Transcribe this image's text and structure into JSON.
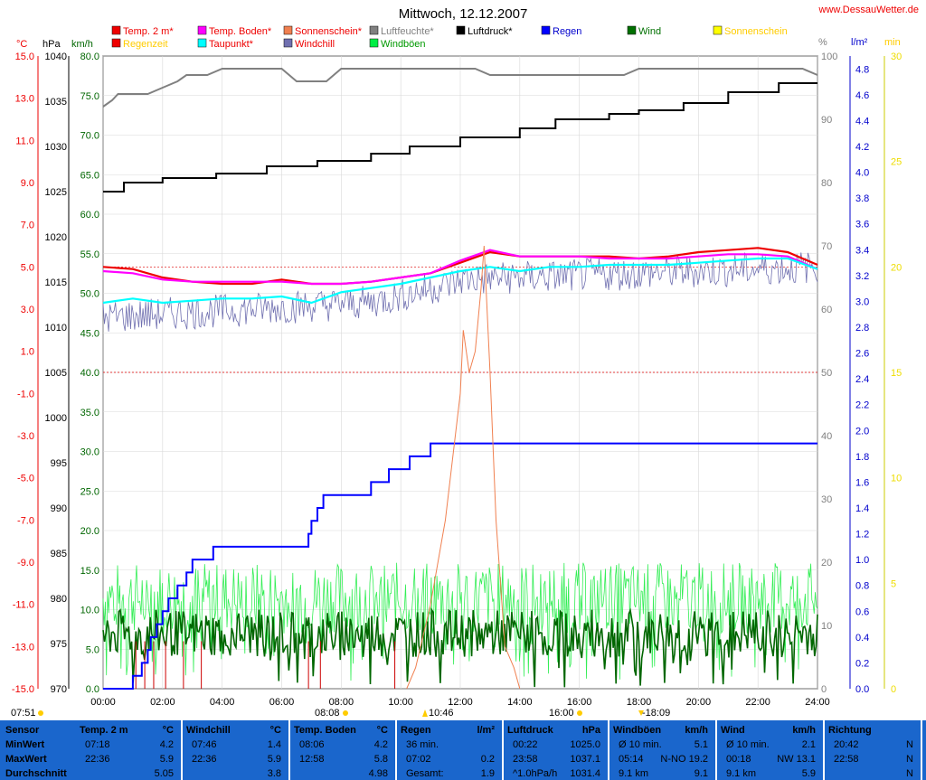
{
  "header": {
    "title": "Mittwoch, 12.12.2007",
    "website": "www.DessauWetter.de"
  },
  "axes": {
    "temp_unit": "°C",
    "temp_ticks": [
      "15.0",
      "13.0",
      "11.0",
      "9.0",
      "7.0",
      "5.0",
      "3.0",
      "1.0",
      "-1.0",
      "-3.0",
      "-5.0",
      "-7.0",
      "-9.0",
      "-11.0",
      "-13.0",
      "-15.0"
    ],
    "press_unit": "hPa",
    "press_ticks": [
      "1040",
      "1035",
      "1030",
      "1025",
      "1020",
      "1015",
      "1010",
      "1005",
      "1000",
      "995",
      "990",
      "985",
      "980",
      "975",
      "970"
    ],
    "wind_unit": "km/h",
    "wind_ticks": [
      "80.0",
      "75.0",
      "70.0",
      "65.0",
      "60.0",
      "55.0",
      "50.0",
      "45.0",
      "40.0",
      "35.0",
      "30.0",
      "25.0",
      "20.0",
      "15.0",
      "10.0",
      "5.0",
      "0.0"
    ],
    "hum_unit": "%",
    "hum_ticks": [
      "100",
      "90",
      "80",
      "70",
      "60",
      "50",
      "40",
      "30",
      "20",
      "10",
      "0"
    ],
    "rain_unit": "l/m²",
    "rain_ticks": [
      "4.8",
      "4.6",
      "4.4",
      "4.2",
      "4.0",
      "3.8",
      "3.6",
      "3.4",
      "3.2",
      "3.0",
      "2.8",
      "2.6",
      "2.4",
      "2.2",
      "2.0",
      "1.8",
      "1.6",
      "1.4",
      "1.2",
      "1.0",
      "0.8",
      "0.6",
      "0.4",
      "0.2",
      "0.0"
    ],
    "sun_unit": "min",
    "sun_ticks": [
      "30",
      "25",
      "20",
      "15",
      "10",
      "5",
      "0"
    ],
    "time_ticks": [
      "00:00",
      "02:00",
      "04:00",
      "06:00",
      "08:00",
      "10:00",
      "12:00",
      "14:00",
      "16:00",
      "18:00",
      "20:00",
      "22:00",
      "24:00"
    ]
  },
  "legend": [
    {
      "label": "Temp. 2 m*",
      "color": "#ee0000"
    },
    {
      "label": "Regenzeit",
      "color": "#ee0000"
    },
    {
      "label": "Temp. Boden*",
      "color": "#ff00ff"
    },
    {
      "label": "Taupunkt*",
      "color": "#00ffff"
    },
    {
      "label": "Sonnenschein*",
      "color": "#f08050"
    },
    {
      "label": "Windchill",
      "color": "#7070b0"
    },
    {
      "label": "Luftfeuchte*",
      "color": "#808080"
    },
    {
      "label": "Windböen",
      "color": "#00ee44"
    },
    {
      "label": "Luftdruck*",
      "color": "#000000"
    },
    {
      "label": "Regen",
      "color": "#0000ff"
    },
    {
      "label": "Wind",
      "color": "#007000"
    },
    {
      "label": "Sonnenschein",
      "color": "#ffff00"
    }
  ],
  "markers": {
    "sunrise": "07:51",
    "sunset": "16:00",
    "t1": "08:08",
    "t2": "10:46",
    "t3": "-18:09"
  },
  "chart_data": {
    "type": "line",
    "x_unit": "hours",
    "xlim": [
      0,
      24
    ],
    "series": [
      {
        "name": "Luftfeuchte*",
        "axis": "hum",
        "color": "#808080",
        "x": [
          0,
          0.3,
          0.5,
          1.5,
          2.0,
          2.5,
          2.8,
          3.5,
          4.0,
          6.0,
          6.5,
          7.5,
          8.0,
          12.5,
          13.0,
          17.5,
          18.0,
          23.5,
          24.0
        ],
        "y": [
          92,
          93,
          94,
          94,
          95,
          96,
          97,
          97,
          98,
          98,
          96,
          96,
          98,
          98,
          97,
          97,
          98,
          98,
          97
        ]
      },
      {
        "name": "Luftdruck*",
        "axis": "press",
        "color": "#000000",
        "x": [
          0,
          0.6,
          0.7,
          1.8,
          2.0,
          3.6,
          3.8,
          5.3,
          5.5,
          7.0,
          7.2,
          8.7,
          9.0,
          10.0,
          10.3,
          11.8,
          12.0,
          13.7,
          14.0,
          15.0,
          15.2,
          16.7,
          17.0,
          17.8,
          18.0,
          19.2,
          19.5,
          20.7,
          21.0,
          22.5,
          22.7,
          24.0
        ],
        "y": [
          1025,
          1025,
          1026,
          1026,
          1026.5,
          1026.5,
          1027,
          1027,
          1027.8,
          1027.8,
          1028.4,
          1028.4,
          1029.2,
          1029.2,
          1030,
          1030,
          1031,
          1031,
          1032,
          1032,
          1033,
          1033,
          1033.6,
          1033.6,
          1034,
          1034,
          1034.8,
          1034.8,
          1036,
          1036,
          1037,
          1037
        ]
      },
      {
        "name": "Temp. 2 m*",
        "axis": "temp",
        "color": "#ee0000",
        "x": [
          0,
          1,
          2,
          3,
          4,
          5,
          6,
          7,
          8,
          9,
          10,
          11,
          12,
          13,
          14,
          15,
          16,
          17,
          18,
          19,
          20,
          21,
          22,
          23,
          24
        ],
        "y": [
          5.0,
          4.9,
          4.5,
          4.3,
          4.2,
          4.2,
          4.4,
          4.2,
          4.2,
          4.3,
          4.5,
          4.7,
          5.2,
          5.7,
          5.5,
          5.5,
          5.5,
          5.5,
          5.4,
          5.5,
          5.7,
          5.8,
          5.9,
          5.7,
          5.1
        ]
      },
      {
        "name": "Temp. Boden*",
        "axis": "temp",
        "color": "#ff00ff",
        "x": [
          0,
          1,
          2,
          3,
          4,
          5,
          6,
          7,
          8,
          9,
          10,
          11,
          12,
          13,
          14,
          15,
          16,
          17,
          18,
          19,
          20,
          21,
          22,
          23,
          24
        ],
        "y": [
          4.8,
          4.7,
          4.4,
          4.3,
          4.3,
          4.3,
          4.3,
          4.2,
          4.2,
          4.3,
          4.5,
          4.7,
          5.3,
          5.8,
          5.5,
          5.5,
          5.5,
          5.4,
          5.4,
          5.4,
          5.5,
          5.6,
          5.6,
          5.5,
          4.9
        ]
      },
      {
        "name": "Taupunkt*",
        "axis": "temp",
        "color": "#00ffff",
        "x": [
          0,
          1,
          2,
          3,
          4,
          5,
          6,
          7,
          8,
          9,
          10,
          11,
          12,
          13,
          14,
          15,
          16,
          17,
          18,
          19,
          20,
          21,
          22,
          23,
          24
        ],
        "y": [
          3.3,
          3.5,
          3.3,
          3.4,
          3.5,
          3.5,
          3.6,
          3.3,
          3.8,
          4.0,
          4.2,
          4.5,
          4.8,
          5.0,
          4.8,
          5.0,
          5.0,
          5.1,
          5.1,
          5.1,
          5.2,
          5.3,
          5.4,
          5.4,
          4.9
        ]
      },
      {
        "name": "Regen",
        "axis": "rain",
        "color": "#0000ff",
        "x": [
          0,
          0.8,
          1.0,
          1.3,
          1.5,
          1.6,
          1.8,
          2.0,
          2.2,
          2.5,
          2.8,
          3.0,
          3.3,
          3.7,
          4.0,
          5.5,
          6.5,
          6.9,
          7.0,
          7.2,
          7.4,
          8.8,
          9.0,
          9.6,
          10.0,
          10.3,
          10.8,
          11.0,
          24.0
        ],
        "y": [
          0,
          0,
          0.1,
          0.2,
          0.3,
          0.4,
          0.5,
          0.6,
          0.7,
          0.8,
          0.9,
          1.0,
          1.0,
          1.1,
          1.1,
          1.1,
          1.1,
          1.2,
          1.3,
          1.4,
          1.5,
          1.5,
          1.6,
          1.7,
          1.7,
          1.8,
          1.8,
          1.9,
          1.9
        ]
      },
      {
        "name": "Sonnenschein*",
        "axis": "sun",
        "color": "#f08050",
        "x": [
          10.2,
          10.5,
          11.0,
          11.5,
          12.0,
          12.1,
          12.3,
          12.5,
          12.7,
          12.8,
          13.0,
          13.2,
          13.5,
          13.8,
          14.0
        ],
        "y": [
          0,
          1,
          4,
          8,
          14,
          17,
          15,
          16,
          19,
          21,
          15,
          8,
          2,
          1,
          0
        ]
      }
    ],
    "noisy_series": [
      {
        "name": "Windchill",
        "axis": "temp",
        "note": "fluctuating between 1.4 and 5.9"
      },
      {
        "name": "Windböen",
        "axis": "wind",
        "note": "gusts up to 19.2 km/h"
      },
      {
        "name": "Wind",
        "axis": "wind",
        "note": "mean wind up to 13.1 km/h"
      }
    ]
  },
  "stats": {
    "row_labels": [
      "Sensor",
      "MinWert",
      "MaxWert",
      "Durchschnitt"
    ],
    "columns": [
      {
        "title": "Temp. 2 m",
        "unit": "°C",
        "min": [
          "07:18",
          "4.2"
        ],
        "max": [
          "22:36",
          "5.9"
        ],
        "avg": [
          "",
          "5.05"
        ]
      },
      {
        "title": "Windchill",
        "unit": "°C",
        "min": [
          "07:46",
          "1.4"
        ],
        "max": [
          "22:36",
          "5.9"
        ],
        "avg": [
          "",
          "3.8"
        ]
      },
      {
        "title": "Temp. Boden",
        "unit": "°C",
        "min": [
          "08:06",
          "4.2"
        ],
        "max": [
          "12:58",
          "5.8"
        ],
        "avg": [
          "",
          "4.98"
        ]
      },
      {
        "title": "Regen",
        "unit": "l/m²",
        "min": [
          "36 min.",
          ""
        ],
        "max": [
          "07:02",
          "0.2"
        ],
        "avg": [
          "Gesamt:",
          "1.9"
        ]
      },
      {
        "title": "Luftdruck",
        "unit": "hPa",
        "min": [
          "00:22",
          "1025.0"
        ],
        "max": [
          "23:58",
          "1037.1"
        ],
        "avg": [
          "^1.0hPa/h",
          "1031.4"
        ]
      },
      {
        "title": "Windböen",
        "unit": "km/h",
        "min": [
          "Ø 10 min.",
          "5.1"
        ],
        "max": [
          "05:14",
          "N-NO 19.2"
        ],
        "avg": [
          "9.1 km",
          "9.1"
        ]
      },
      {
        "title": "Wind",
        "unit": "km/h",
        "min": [
          "Ø 10 min.",
          "2.1"
        ],
        "max": [
          "00:18",
          "NW 13.1"
        ],
        "avg": [
          "9.1 km",
          "5.9"
        ]
      },
      {
        "title": "Richtung",
        "unit": "",
        "min": [
          "20:42",
          "N"
        ],
        "max": [
          "22:58",
          "N"
        ],
        "avg": [
          "",
          "N"
        ]
      }
    ]
  }
}
